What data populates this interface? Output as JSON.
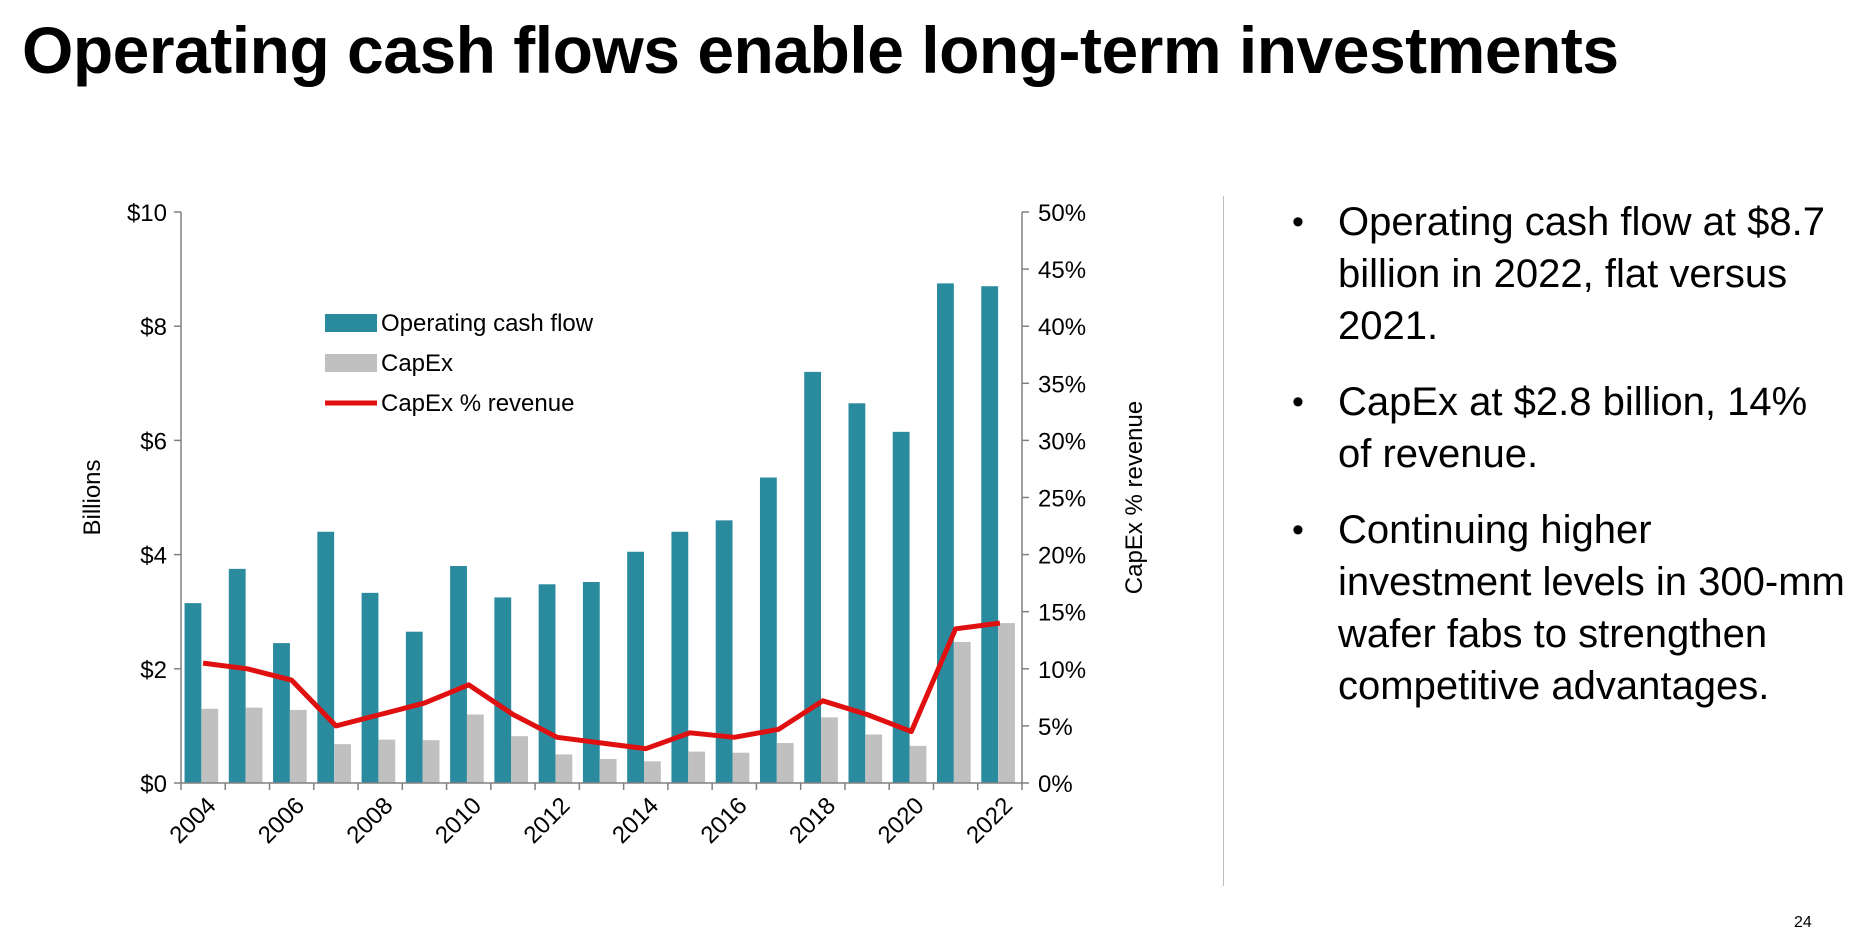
{
  "title": "Operating cash flows enable long-term investments",
  "page_number": "24",
  "bullets": [
    "Operating cash flow at $8.7 billion in 2022, flat versus 2021.",
    "CapEx at $2.8 billion, 14% of revenue.",
    "Continuing higher investment levels in 300-mm wafer fabs to strengthen competitive advantages."
  ],
  "colors": {
    "ocf": "#2a8a9e",
    "capex": "#c0c0c0",
    "pct": "#e01010",
    "axis": "#808080"
  },
  "chart_data": {
    "type": "bar",
    "x": [
      2004,
      2005,
      2006,
      2007,
      2008,
      2009,
      2010,
      2011,
      2012,
      2013,
      2014,
      2015,
      2016,
      2017,
      2018,
      2019,
      2020,
      2021,
      2022
    ],
    "x_tick_labels": [
      "2004",
      "2006",
      "2008",
      "2010",
      "2012",
      "2014",
      "2016",
      "2018",
      "2020",
      "2022"
    ],
    "series": [
      {
        "name": "Operating cash flow",
        "kind": "bar",
        "axis": "left",
        "values": [
          3.15,
          3.75,
          2.45,
          4.4,
          3.33,
          2.65,
          3.8,
          3.25,
          3.48,
          3.52,
          4.05,
          4.4,
          4.6,
          5.35,
          7.2,
          6.65,
          6.15,
          8.75,
          8.7
        ]
      },
      {
        "name": "CapEx",
        "kind": "bar",
        "axis": "left",
        "values": [
          1.3,
          1.32,
          1.28,
          0.68,
          0.76,
          0.75,
          1.2,
          0.82,
          0.5,
          0.42,
          0.38,
          0.55,
          0.53,
          0.7,
          1.15,
          0.85,
          0.65,
          2.47,
          2.8
        ]
      },
      {
        "name": "CapEx % revenue",
        "kind": "line",
        "axis": "right",
        "values": [
          10.5,
          10.0,
          9.0,
          5.0,
          6.0,
          7.0,
          8.6,
          6.0,
          4.0,
          3.5,
          3.0,
          4.4,
          4.0,
          4.7,
          7.2,
          6.0,
          4.5,
          13.5,
          14.0
        ]
      }
    ],
    "ylabel": "Billions",
    "y_tick_labels": [
      "$0",
      "$2",
      "$4",
      "$6",
      "$8",
      "$10"
    ],
    "ylim": [
      0,
      10
    ],
    "y2label": "CapEx % revenue",
    "y2_tick_labels": [
      "0%",
      "5%",
      "10%",
      "15%",
      "20%",
      "25%",
      "30%",
      "35%",
      "40%",
      "45%",
      "50%"
    ],
    "y2lim": [
      0,
      50
    ],
    "legend_position": "top-left",
    "grid": false
  }
}
